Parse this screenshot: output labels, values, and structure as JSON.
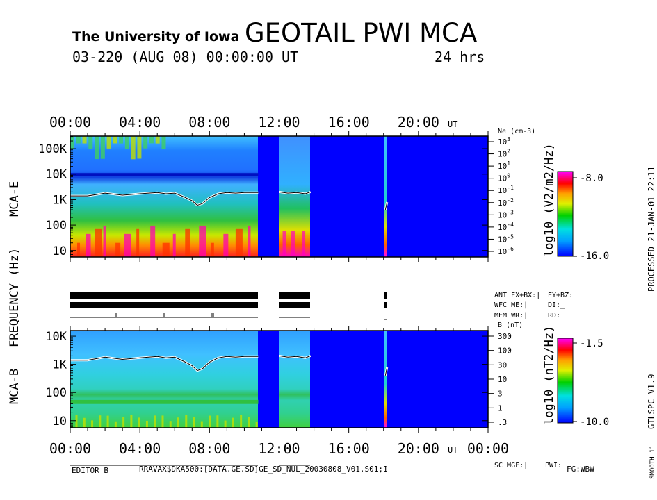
{
  "header": {
    "institution": "The University of Iowa",
    "title": "GEOTAIL PWI MCA",
    "date_line": "03-220 (AUG 08) 00:00:00 UT",
    "duration": "24 hrs"
  },
  "side_text": {
    "processed": "PROCESSED 21-JAN-01 22:11",
    "program": "GTLSPC V1.9",
    "smooth": "SMOOTH 11"
  },
  "footer": {
    "editor": "EDITOR B",
    "file": "RRAVAX$DKA500:[DATA.GE.SD]GE_SD_NUL_20030808_V01.S01;1",
    "fg": "FG:WBW"
  },
  "chart_data": [
    {
      "type": "heatmap",
      "name": "MCA-E",
      "ylabel": "MCA-E",
      "shared_ylabel": "FREQUENCY (Hz)",
      "x_ticks": [
        "00:00",
        "04:00",
        "08:00",
        "12:00",
        "16:00",
        "20:00"
      ],
      "x_unit": "UT",
      "xlim_hours": [
        0,
        24
      ],
      "y_ticks": [
        "100K",
        "10K",
        "1K",
        "100",
        "10"
      ],
      "y_tick_values": [
        100000,
        10000,
        1000,
        100,
        10
      ],
      "ylim_hz": [
        5.6,
        311000
      ],
      "right_axis_label": "Ne (cm-3)",
      "right_axis_ticks": [
        "10^3",
        "10^2",
        "10^1",
        "10^0",
        "10^-1",
        "10^-2",
        "10^-3",
        "10^-4",
        "10^-5",
        "10^-6"
      ],
      "colorbar": {
        "label": "log10 (V2/m2/Hz)",
        "max": "-8.0",
        "min": "-16.0",
        "vmax": -8.0,
        "vmin": -16.0
      },
      "data_gaps_hours": [
        [
          10.8,
          12.0
        ],
        [
          13.8,
          18.1
        ],
        [
          18.25,
          24.0
        ]
      ],
      "plasma_frequency_line": {
        "x_hours": [
          0,
          1,
          2,
          3,
          4,
          5,
          5.5,
          6,
          6.5,
          7,
          7.3,
          7.6,
          8,
          8.5,
          9,
          9.5,
          10,
          10.8,
          12,
          12.5,
          13,
          13.5,
          13.8,
          18.1,
          18.2
        ],
        "freq_hz": [
          1400,
          1400,
          1800,
          1500,
          1700,
          1900,
          1700,
          1800,
          1300,
          900,
          600,
          700,
          1200,
          1700,
          1900,
          1800,
          1900,
          1900,
          2000,
          1800,
          1900,
          1700,
          2000,
          400,
          800
        ]
      }
    },
    {
      "type": "table",
      "name": "mode-status",
      "rows": [
        {
          "label": "ANT EX+BX:|",
          "value": "EY+BZ:_"
        },
        {
          "label": "WFC ME:|",
          "value": "DI:_"
        },
        {
          "label": "MEM WR:|",
          "value": "RD:_"
        }
      ]
    },
    {
      "type": "heatmap",
      "name": "MCA-B",
      "ylabel": "MCA-B",
      "x_ticks": [
        "00:00",
        "04:00",
        "08:00",
        "12:00",
        "16:00",
        "20:00",
        "00:00"
      ],
      "x_unit": "UT",
      "xlim_hours": [
        0,
        24
      ],
      "y_ticks": [
        "10K",
        "1K",
        "100",
        "10"
      ],
      "y_tick_values": [
        10000,
        1000,
        100,
        10
      ],
      "ylim_hz": [
        5.6,
        15800
      ],
      "right_axis_label": "B (nT)",
      "right_axis_ticks": [
        "300",
        "100",
        "30",
        "10",
        "3",
        "1",
        ".3"
      ],
      "colorbar": {
        "label": "log10 (nT2/Hz)",
        "max": "-1.5",
        "min": "-10.0",
        "vmax": -1.5,
        "vmin": -10.0
      },
      "data_gaps_hours": [
        [
          10.8,
          12.0
        ],
        [
          13.8,
          18.1
        ],
        [
          18.25,
          24.0
        ]
      ],
      "status_line": {
        "label": "SC MGF:|",
        "value": "PWI:_"
      }
    }
  ]
}
